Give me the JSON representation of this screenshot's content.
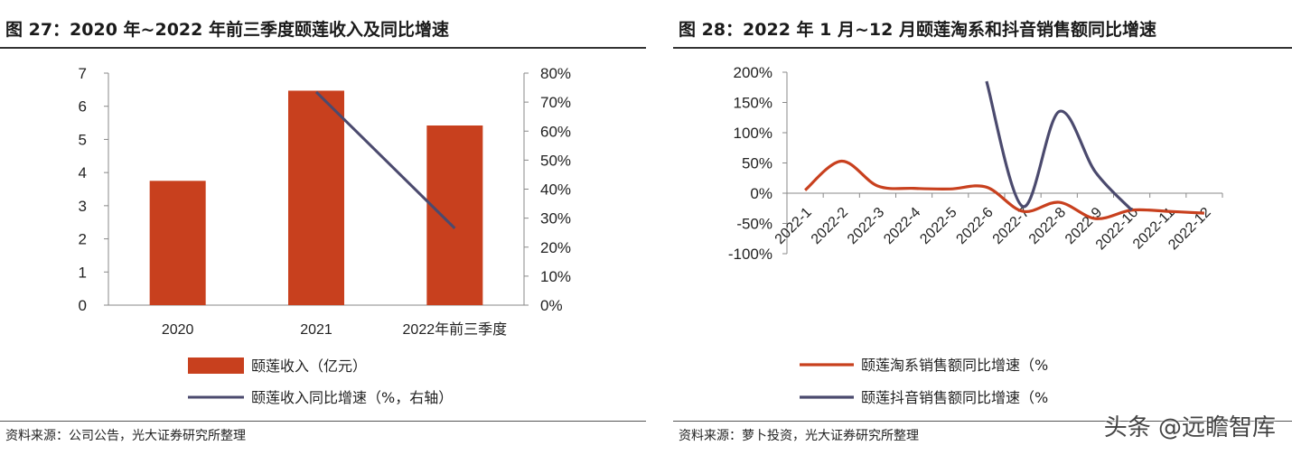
{
  "left": {
    "title": "图 27：2020 年~2022 年前三季度颐莲收入及同比增速",
    "source": "资料来源：公司公告，光大证券研究所整理",
    "colors": {
      "bar": "#C8401E",
      "line": "#4B4A6E"
    },
    "chart_data": {
      "type": "bar",
      "categories": [
        "2020",
        "2021",
        "2022年前三季度"
      ],
      "series": [
        {
          "name": "颐莲收入（亿元）",
          "type": "bar",
          "axis": "left",
          "values": [
            3.75,
            6.47,
            5.42
          ]
        },
        {
          "name": "颐莲收入同比增速（%，右轴）",
          "type": "line",
          "axis": "right",
          "values": [
            null,
            73.5,
            26.5
          ]
        }
      ],
      "ylim_left": [
        0,
        7
      ],
      "yticks_left": [
        "0",
        "1",
        "2",
        "3",
        "4",
        "5",
        "6",
        "7"
      ],
      "ylim_right": [
        0,
        80
      ],
      "yticks_right": [
        "0%",
        "10%",
        "20%",
        "30%",
        "40%",
        "50%",
        "60%",
        "70%",
        "80%"
      ],
      "legend": [
        "颐莲收入（亿元）",
        "颐莲收入同比增速（%，右轴）"
      ],
      "legend_position": "bottom",
      "grid": false
    }
  },
  "right": {
    "title": "图 28：2022 年 1 月~12 月颐莲淘系和抖音销售额同比增速",
    "source": "资料来源：萝卜投资，光大证券研究所整理",
    "colors": {
      "taobao": "#C8401E",
      "douyin": "#4B4A6E"
    },
    "chart_data": {
      "type": "line",
      "x": [
        "2022-1",
        "2022-2",
        "2022-3",
        "2022-4",
        "2022-5",
        "2022-6",
        "2022-7",
        "2022-8",
        "2022-9",
        "2022-10",
        "2022-11",
        "2022-12"
      ],
      "series": [
        {
          "name": "颐莲淘系销售额同比增速（%",
          "values": [
            5,
            53,
            12,
            8,
            7,
            10,
            -30,
            -15,
            -42,
            -28,
            -30,
            -33
          ]
        },
        {
          "name": "颐莲抖音销售额同比增速（%",
          "values": [
            null,
            null,
            null,
            null,
            null,
            185,
            -22,
            135,
            35,
            -28,
            null,
            null
          ]
        }
      ],
      "ylim": [
        -100,
        200
      ],
      "yticks": [
        "-100%",
        "-50%",
        "0%",
        "50%",
        "100%",
        "150%",
        "200%"
      ],
      "legend": [
        "颐莲淘系销售额同比增速（%",
        "颐莲抖音销售额同比增速（%"
      ],
      "legend_position": "bottom",
      "grid": false
    }
  },
  "watermark": "头条 @远瞻智库"
}
